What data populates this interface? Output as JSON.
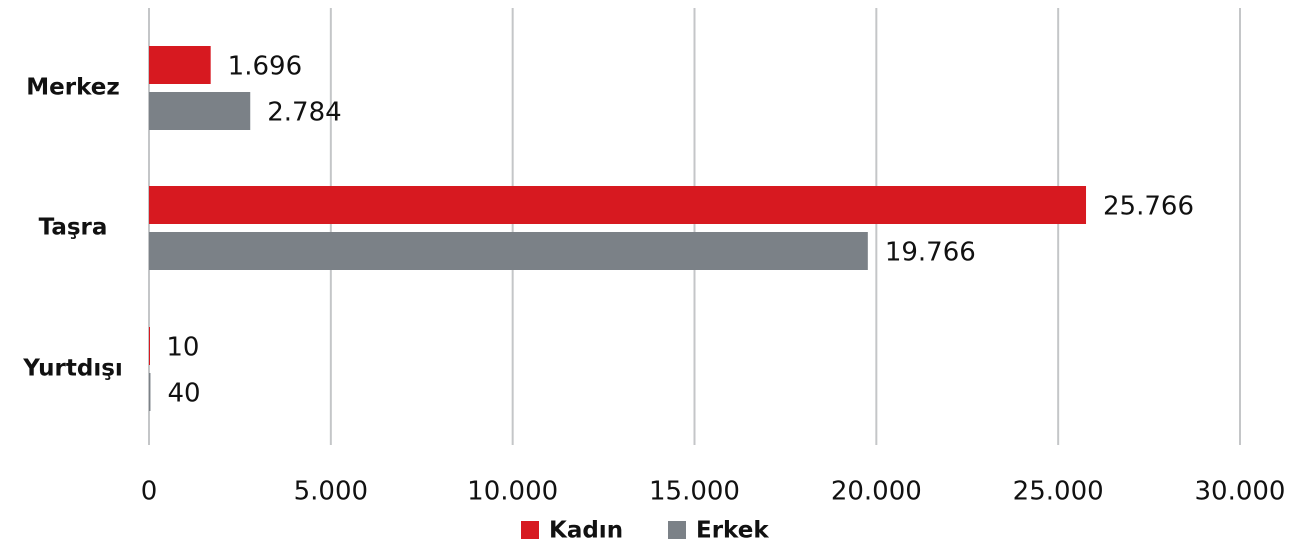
{
  "chart_data": {
    "type": "hbar",
    "categories": [
      "Merkez",
      "Taşra",
      "Yurtdışı"
    ],
    "series": [
      {
        "name": "Kadın",
        "color": "#d71920",
        "values": [
          1696,
          25766,
          10
        ],
        "value_labels": [
          "1.696",
          "25.766",
          "10"
        ]
      },
      {
        "name": "Erkek",
        "color": "#7b8187",
        "values": [
          2784,
          19766,
          40
        ],
        "value_labels": [
          "2.784",
          "19.766",
          "40"
        ]
      }
    ],
    "xlim": [
      0,
      30000
    ],
    "xticks": [
      0,
      {
        "value": 5000,
        "label": "5.000"
      },
      {
        "value": 10000,
        "label": "10.000"
      },
      {
        "value": 15000,
        "label": "15.000"
      },
      {
        "value": 20000,
        "label": "20.000"
      },
      {
        "value": 25000,
        "label": "25.000"
      },
      {
        "value": 30000,
        "label": "30.000"
      }
    ],
    "grid": true,
    "legend": "bottom"
  }
}
